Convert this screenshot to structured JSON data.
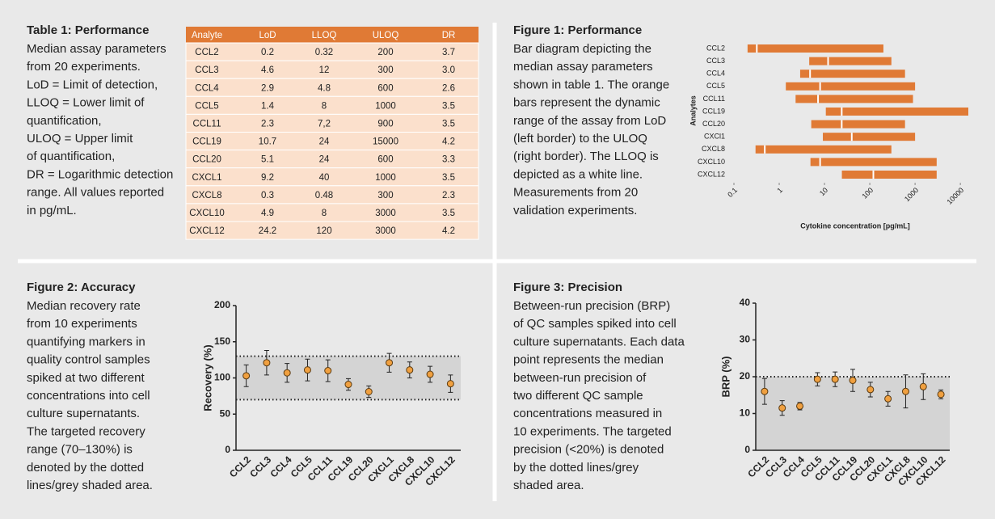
{
  "table1": {
    "title": "Table 1: Performance",
    "caption": [
      "Median assay parameters",
      "from 20 experiments.",
      "LoD = Limit of detection,",
      "LLOQ = Lower limit of",
      "quantification,",
      "ULOQ = Upper limit",
      "of quantification,",
      "DR = Logarithmic detection",
      "range. All values reported",
      "in pg/mL."
    ],
    "header": [
      "Analyte",
      "LoD",
      "LLOQ",
      "ULOQ",
      "DR"
    ],
    "rows": [
      [
        "CCL2",
        "0.2",
        "0.32",
        "200",
        "3.7"
      ],
      [
        "CCL3",
        "4.6",
        "12",
        "300",
        "3.0"
      ],
      [
        "CCL4",
        "2.9",
        "4.8",
        "600",
        "2.6"
      ],
      [
        "CCL5",
        "1.4",
        "8",
        "1000",
        "3.5"
      ],
      [
        "CCL11",
        "2.3",
        "7,2",
        "900",
        "3.5"
      ],
      [
        "CCL19",
        "10.7",
        "24",
        "15000",
        "4.2"
      ],
      [
        "CCL20",
        "5.1",
        "24",
        "600",
        "3.3"
      ],
      [
        "CXCL1",
        "9.2",
        "40",
        "1000",
        "3.5"
      ],
      [
        "CXCL8",
        "0.3",
        "0.48",
        "300",
        "2.3"
      ],
      [
        "CXCL10",
        "4.9",
        "8",
        "3000",
        "3.5"
      ],
      [
        "CXCL12",
        "24.2",
        "120",
        "3000",
        "4.2"
      ]
    ]
  },
  "figure1": {
    "type": "bar",
    "title": "Figure 1: Performance",
    "caption": [
      "Bar diagram depicting the",
      "median assay parameters",
      "shown in table 1. The orange",
      "bars represent the dynamic",
      "range of the assay from LoD",
      "(left border) to the ULOQ",
      "(right border). The LLOQ is",
      "depicted as a white line.",
      "Measurements from 20",
      "validation experiments."
    ],
    "ylabel": "Analytes",
    "xlabel": "Cytokine concentration [pg/mL]",
    "categories": [
      "CCL2",
      "CCL3",
      "CCL4",
      "CCL5",
      "CCL11",
      "CCL19",
      "CCL20",
      "CXCl1",
      "CXCL8",
      "CXCL10",
      "CXCL12"
    ],
    "lod": [
      0.2,
      4.6,
      2.9,
      1.4,
      2.3,
      10.7,
      5.1,
      9.2,
      0.3,
      4.9,
      24.2
    ],
    "lloq": [
      0.32,
      12,
      4.8,
      8,
      7.2,
      24,
      24,
      40,
      0.48,
      8,
      120
    ],
    "uloq": [
      200,
      300,
      600,
      1000,
      900,
      15000,
      600,
      1000,
      300,
      3000,
      3000
    ],
    "xlim": [
      0.1,
      20000
    ],
    "xticks": [
      0.1,
      1,
      10,
      100,
      1000,
      10000
    ],
    "log_x": true,
    "color": "#e07a35"
  },
  "figure2": {
    "type": "scatter",
    "title": "Figure 2: Accuracy",
    "caption": [
      "Median recovery rate",
      "from 10 experiments",
      "quantifying markers in",
      "quality control samples",
      "spiked at two different",
      "concentrations into cell",
      "culture supernatants.",
      "The targeted recovery",
      "range (70–130%) is",
      "denoted by the dotted",
      "lines/grey shaded area."
    ],
    "ylabel": "Recovery (%)",
    "categories": [
      "CCL2",
      "CCL3",
      "CCL4",
      "CCL5",
      "CCL11",
      "CCL19",
      "CCL20",
      "CXCL1",
      "CXCL8",
      "CXCL10",
      "CXCL12"
    ],
    "values": [
      103,
      121,
      107,
      111,
      110,
      91,
      81,
      121,
      111,
      105,
      92
    ],
    "errors": [
      15,
      17,
      13,
      15,
      15,
      8,
      8,
      13,
      11,
      11,
      12
    ],
    "band": [
      70,
      130
    ],
    "ylim": [
      0,
      200
    ],
    "yticks": [
      0,
      50,
      100,
      150,
      200
    ],
    "color": "#f0a040"
  },
  "figure3": {
    "type": "scatter",
    "title": "Figure 3: Precision",
    "caption": [
      "Between-run precision (BRP)",
      "of QC samples spiked into cell",
      "culture supernatants. Each data",
      "point represents the median",
      "between-run precision of",
      "two different QC sample",
      "concentrations measured in",
      "10 experiments. The targeted",
      "precision (<20%) is denoted",
      "by the dotted lines/grey",
      "shaded area."
    ],
    "ylabel": "BRP (%)",
    "categories": [
      "CCL2",
      "CCL3",
      "CCL4",
      "CCL5",
      "CCL11",
      "CCL19",
      "CCL20",
      "CXCL1",
      "CXCL8",
      "CXCL10",
      "CXCL12"
    ],
    "values": [
      16,
      11.5,
      12,
      19.3,
      19.3,
      19,
      16.5,
      14,
      16,
      17.3,
      15.2
    ],
    "errors": [
      3.5,
      2,
      1,
      1.8,
      2,
      3,
      2,
      2,
      4.5,
      3.5,
      1.2
    ],
    "band": [
      0,
      20
    ],
    "ylim": [
      0,
      40
    ],
    "yticks": [
      0,
      10,
      20,
      30,
      40
    ],
    "color": "#f0a040"
  }
}
